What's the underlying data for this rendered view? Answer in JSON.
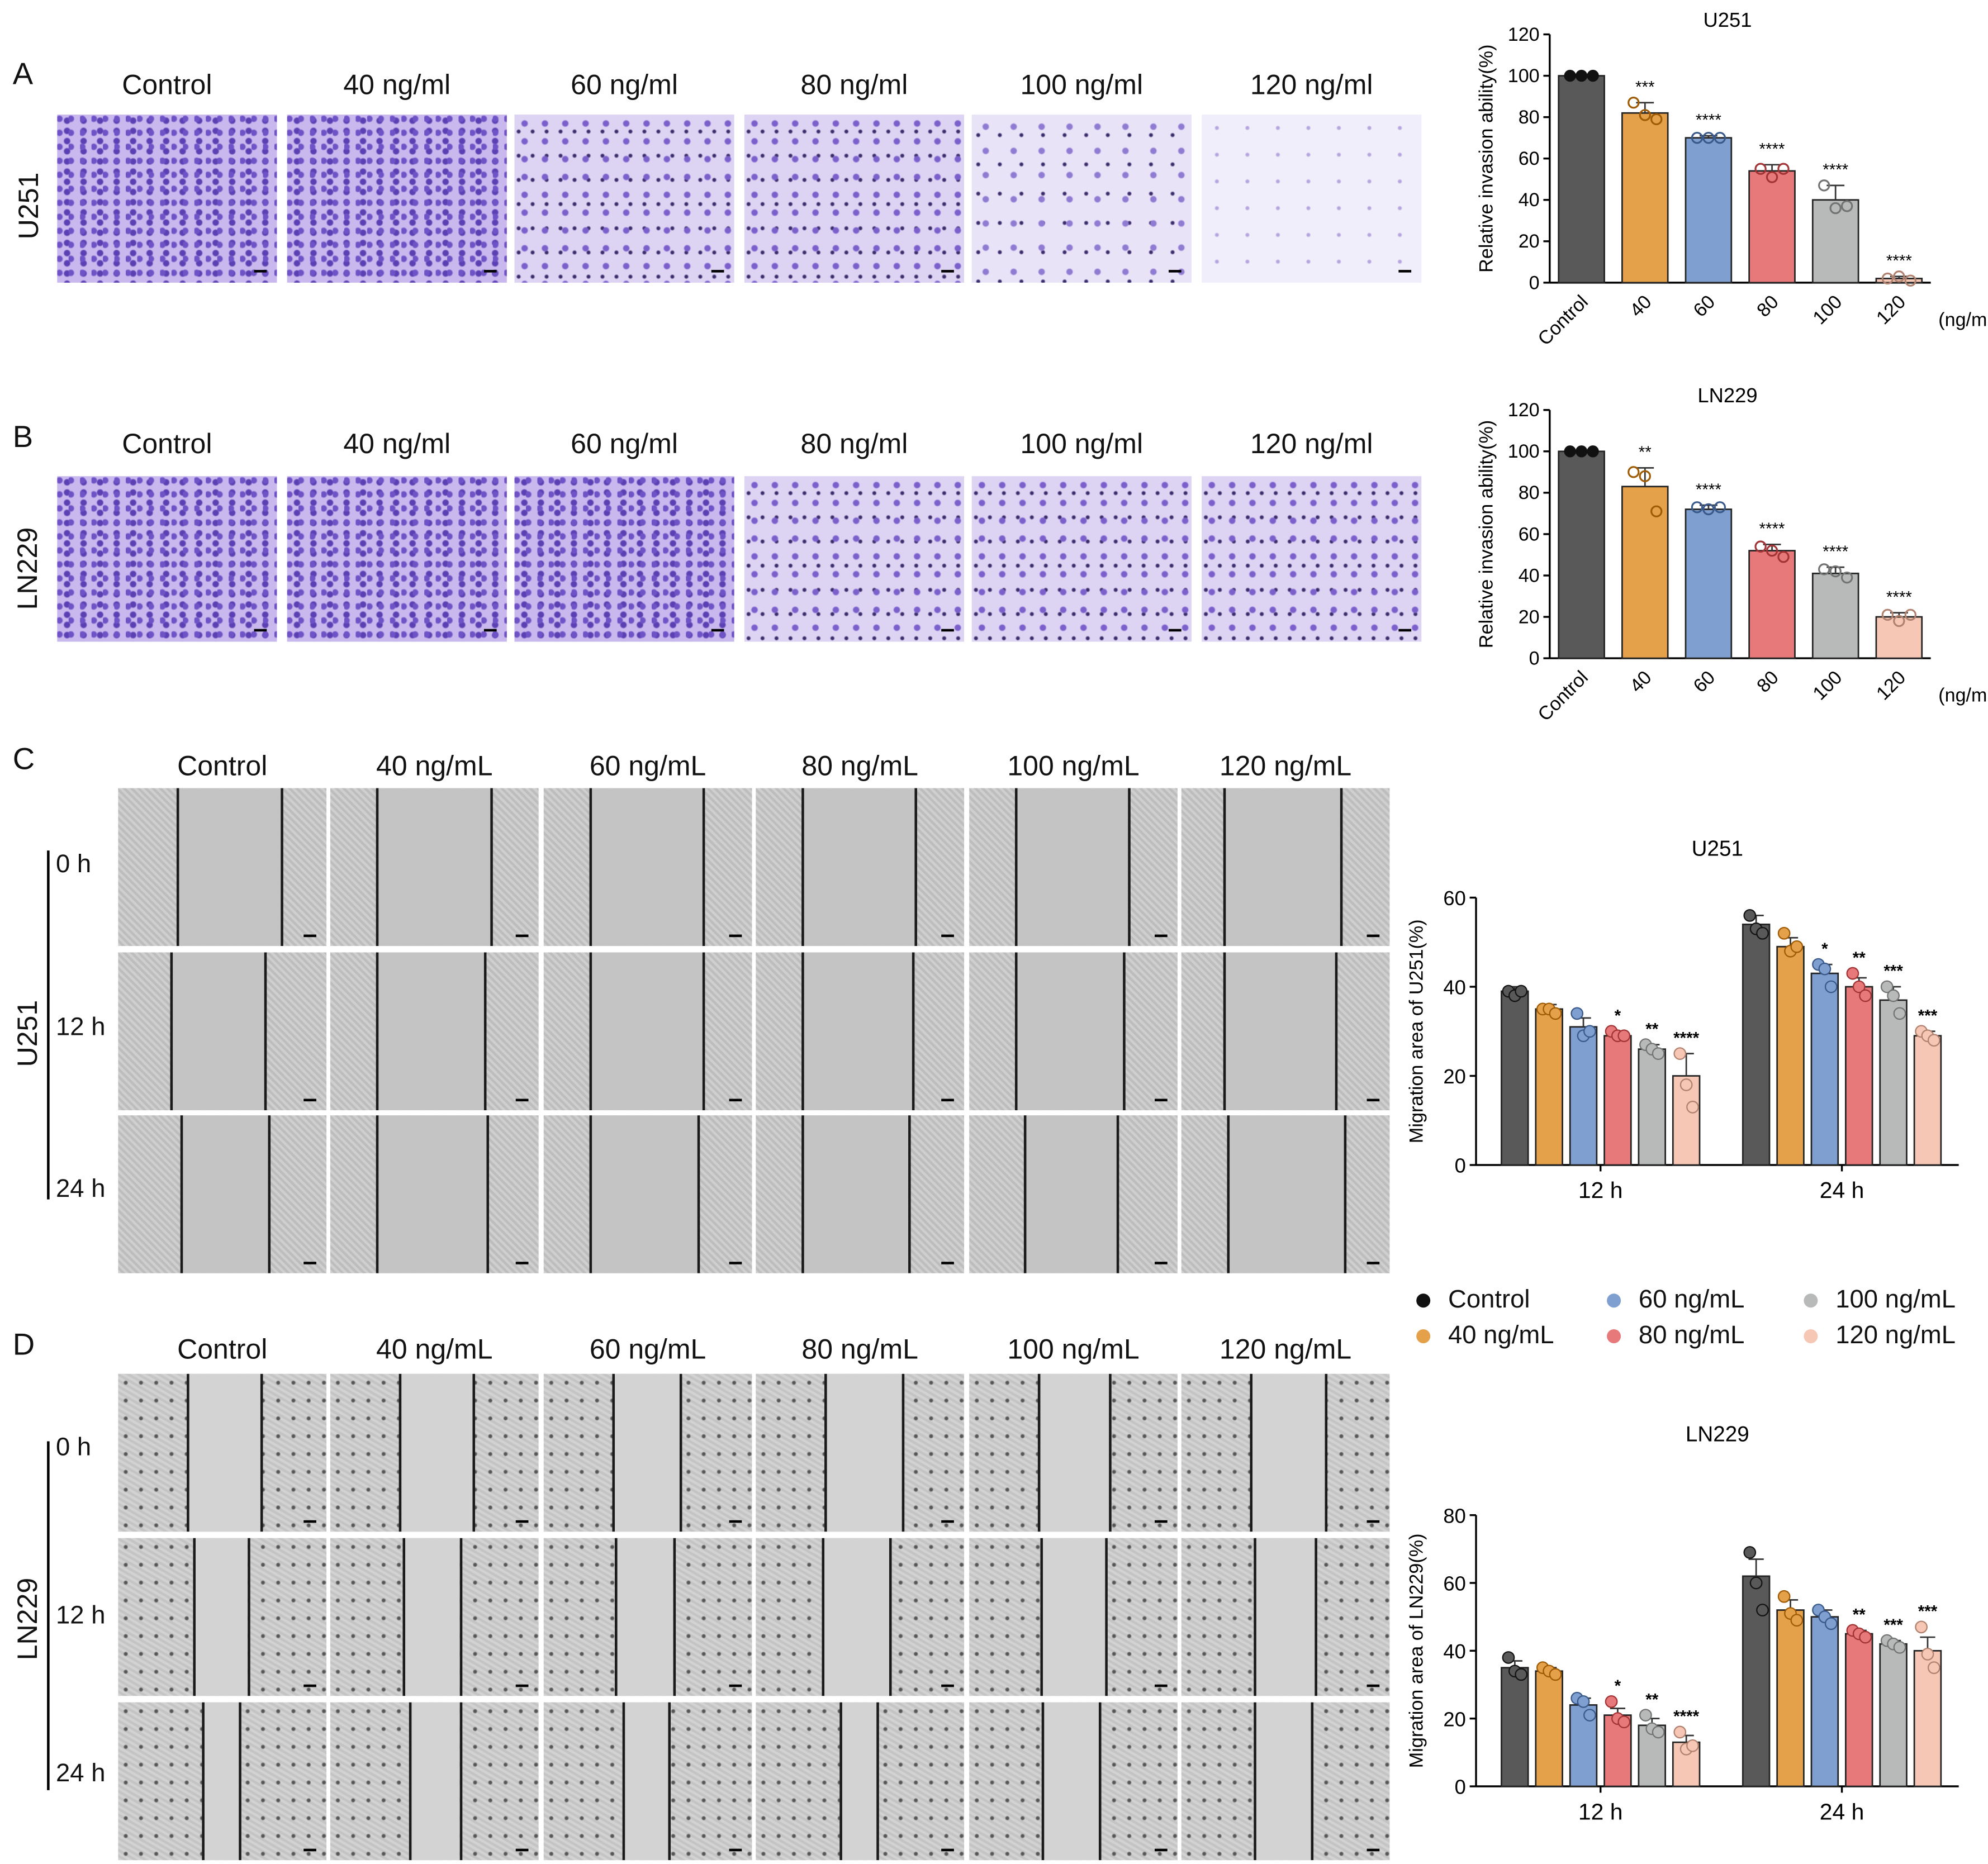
{
  "panels": {
    "A": {
      "letter": "A",
      "cell_line": "U251",
      "labels": [
        "Control",
        "40 ng/ml",
        "60 ng/ml",
        "80 ng/ml",
        "100 ng/ml",
        "120 ng/ml"
      ]
    },
    "B": {
      "letter": "B",
      "cell_line": "LN229",
      "labels": [
        "Control",
        "40 ng/ml",
        "60 ng/ml",
        "80 ng/ml",
        "100 ng/ml",
        "120 ng/ml"
      ]
    },
    "C": {
      "letter": "C",
      "cell_line": "U251",
      "labels": [
        "Control",
        "40 ng/mL",
        "60 ng/mL",
        "80 ng/mL",
        "100 ng/mL",
        "120 ng/mL"
      ],
      "times": [
        "0 h",
        "12 h",
        "24 h"
      ]
    },
    "D": {
      "letter": "D",
      "cell_line": "LN229",
      "labels": [
        "Control",
        "40 ng/mL",
        "60 ng/mL",
        "80 ng/mL",
        "100 ng/mL",
        "120 ng/mL"
      ],
      "times": [
        "0 h",
        "12 h",
        "24 h"
      ]
    }
  },
  "colors": {
    "Control": "#595959",
    "40": "#e5a04a",
    "60": "#7f9fd0",
    "80": "#e8797a",
    "100": "#b8baba",
    "120": "#f6c7b4"
  },
  "legend": [
    {
      "label": "Control",
      "color": "#111111"
    },
    {
      "label": "60 ng/mL",
      "color": "#7f9fd0"
    },
    {
      "label": "100 ng/mL",
      "color": "#b8baba"
    },
    {
      "label": "40 ng/mL",
      "color": "#e5a04a"
    },
    {
      "label": "80 ng/mL",
      "color": "#e8797a"
    },
    {
      "label": "120 ng/mL",
      "color": "#f6c7b4"
    }
  ],
  "chart_data": [
    {
      "id": "A",
      "type": "bar",
      "title": "U251",
      "ylabel": "Relative invasion ability(%)",
      "xunit": "(ng/mL)",
      "categories": [
        "Control",
        "40",
        "60",
        "80",
        "100",
        "120"
      ],
      "values": [
        100,
        82,
        70,
        54,
        40,
        2
      ],
      "errors": [
        0,
        5,
        1,
        3,
        7,
        1
      ],
      "sig": [
        "",
        "***",
        "****",
        "****",
        "****",
        "****"
      ],
      "ylim": [
        0,
        120
      ],
      "yticks": [
        0,
        20,
        40,
        60,
        80,
        100,
        120
      ],
      "points": [
        [
          100,
          100,
          100
        ],
        [
          87,
          81,
          79
        ],
        [
          70,
          70,
          70
        ],
        [
          55,
          51,
          55
        ],
        [
          47,
          36,
          37
        ],
        [
          2,
          3,
          1
        ]
      ]
    },
    {
      "id": "B",
      "type": "bar",
      "title": "LN229",
      "ylabel": "Relative invasion ability(%)",
      "xunit": "(ng/mL)",
      "categories": [
        "Control",
        "40",
        "60",
        "80",
        "100",
        "120"
      ],
      "values": [
        100,
        83,
        72,
        52,
        41,
        20
      ],
      "errors": [
        0,
        9,
        2,
        3,
        3,
        2
      ],
      "sig": [
        "",
        "**",
        "****",
        "****",
        "****",
        "****"
      ],
      "ylim": [
        0,
        120
      ],
      "yticks": [
        0,
        20,
        40,
        60,
        80,
        100,
        120
      ],
      "points": [
        [
          100,
          100,
          100
        ],
        [
          90,
          88,
          71
        ],
        [
          73,
          72,
          73
        ],
        [
          54,
          52,
          49
        ],
        [
          43,
          42,
          39
        ],
        [
          21,
          18,
          21
        ]
      ]
    },
    {
      "id": "C",
      "type": "bar",
      "title": "U251",
      "ylabel": "Migration area of U251(%)",
      "groups": [
        "12 h",
        "24 h"
      ],
      "series": [
        {
          "name": "Control",
          "values": [
            39,
            54
          ],
          "errors": [
            1,
            2
          ],
          "points": [
            [
              39,
              38,
              39
            ],
            [
              56,
              53,
              52
            ]
          ],
          "sig": [
            "",
            ""
          ]
        },
        {
          "name": "40 ng/mL",
          "values": [
            35,
            49
          ],
          "errors": [
            1,
            2
          ],
          "points": [
            [
              35,
              35,
              34
            ],
            [
              52,
              48,
              49
            ]
          ],
          "sig": [
            "",
            ""
          ]
        },
        {
          "name": "60 ng/mL",
          "values": [
            31,
            43
          ],
          "errors": [
            2,
            2
          ],
          "points": [
            [
              34,
              29,
              30
            ],
            [
              45,
              44,
              40
            ]
          ],
          "sig": [
            "",
            "*"
          ]
        },
        {
          "name": "80 ng/mL",
          "values": [
            29,
            40
          ],
          "errors": [
            1,
            2
          ],
          "points": [
            [
              30,
              29,
              29
            ],
            [
              43,
              40,
              38
            ]
          ],
          "sig": [
            "*",
            "**"
          ]
        },
        {
          "name": "100 ng/mL",
          "values": [
            26,
            37
          ],
          "errors": [
            1,
            3
          ],
          "points": [
            [
              27,
              26,
              25
            ],
            [
              40,
              38,
              34
            ]
          ],
          "sig": [
            "**",
            "***"
          ]
        },
        {
          "name": "120 ng/mL",
          "values": [
            20,
            29
          ],
          "errors": [
            5,
            1
          ],
          "points": [
            [
              25,
              18,
              13
            ],
            [
              30,
              29,
              28
            ]
          ],
          "sig": [
            "****",
            "***"
          ]
        }
      ],
      "ylim": [
        0,
        60
      ],
      "yticks": [
        0,
        20,
        40,
        60
      ]
    },
    {
      "id": "D",
      "type": "bar",
      "title": "LN229",
      "ylabel": "Migration area of LN229(%)",
      "groups": [
        "12 h",
        "24 h"
      ],
      "series": [
        {
          "name": "Control",
          "values": [
            35,
            62
          ],
          "errors": [
            2,
            5
          ],
          "points": [
            [
              38,
              34,
              33
            ],
            [
              69,
              60,
              52
            ]
          ],
          "sig": [
            "",
            ""
          ]
        },
        {
          "name": "40 ng/mL",
          "values": [
            34,
            52
          ],
          "errors": [
            1,
            3
          ],
          "points": [
            [
              35,
              34,
              33
            ],
            [
              56,
              51,
              49
            ]
          ],
          "sig": [
            "",
            ""
          ]
        },
        {
          "name": "60 ng/mL",
          "values": [
            24,
            50
          ],
          "errors": [
            2,
            2
          ],
          "points": [
            [
              26,
              25,
              21
            ],
            [
              52,
              50,
              48
            ]
          ],
          "sig": [
            "",
            ""
          ]
        },
        {
          "name": "80 ng/mL",
          "values": [
            21,
            45
          ],
          "errors": [
            2,
            1
          ],
          "points": [
            [
              25,
              20,
              19
            ],
            [
              46,
              45,
              44
            ]
          ],
          "sig": [
            "*",
            "**"
          ]
        },
        {
          "name": "100 ng/mL",
          "values": [
            18,
            42
          ],
          "errors": [
            2,
            1
          ],
          "points": [
            [
              21,
              17,
              16
            ],
            [
              43,
              42,
              41
            ]
          ],
          "sig": [
            "**",
            "***"
          ]
        },
        {
          "name": "120 ng/mL",
          "values": [
            13,
            40
          ],
          "errors": [
            2,
            4
          ],
          "points": [
            [
              16,
              11,
              12
            ],
            [
              47,
              39,
              35
            ]
          ],
          "sig": [
            "****",
            "***"
          ]
        }
      ],
      "ylim": [
        0,
        80
      ],
      "yticks": [
        0,
        20,
        40,
        60,
        80
      ]
    }
  ]
}
